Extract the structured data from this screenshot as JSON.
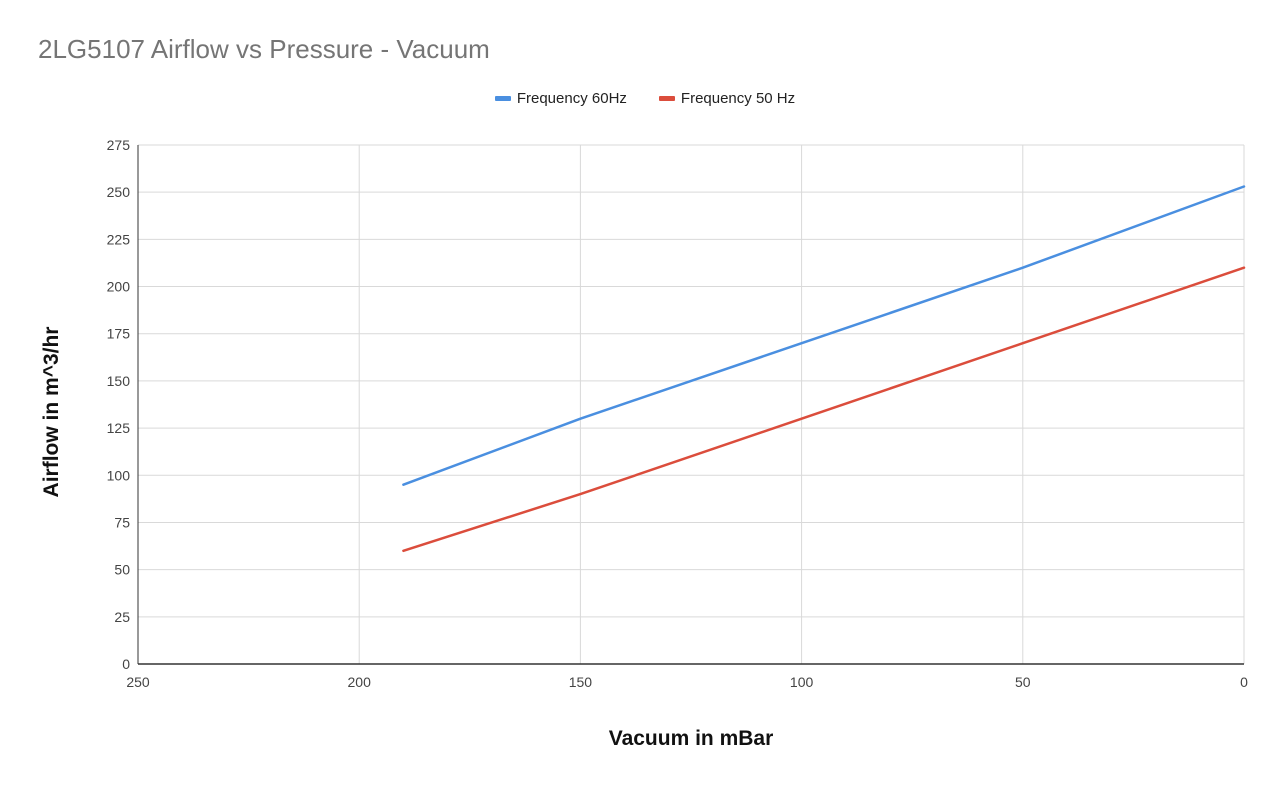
{
  "chart_data": {
    "type": "line",
    "title": "2LG5107 Airflow vs Pressure - Vacuum",
    "xlabel": "Vacuum in mBar",
    "ylabel": "Airflow in m^3/hr",
    "xlim": [
      250,
      0
    ],
    "ylim": [
      0,
      275
    ],
    "x_reversed": true,
    "x_ticks": [
      250,
      200,
      150,
      100,
      50,
      0
    ],
    "y_ticks": [
      0,
      25,
      50,
      75,
      100,
      125,
      150,
      175,
      200,
      225,
      250,
      275
    ],
    "grid": true,
    "legend_position": "top",
    "series": [
      {
        "name": "Frequency 60Hz",
        "color": "#4a8fe0",
        "points": [
          [
            190,
            95
          ],
          [
            150,
            130
          ],
          [
            100,
            170
          ],
          [
            50,
            210
          ],
          [
            0,
            253
          ]
        ]
      },
      {
        "name": "Frequency 50 Hz",
        "color": "#db4d3c",
        "points": [
          [
            190,
            60
          ],
          [
            150,
            90
          ],
          [
            100,
            130
          ],
          [
            50,
            170
          ],
          [
            0,
            210
          ]
        ]
      }
    ]
  }
}
